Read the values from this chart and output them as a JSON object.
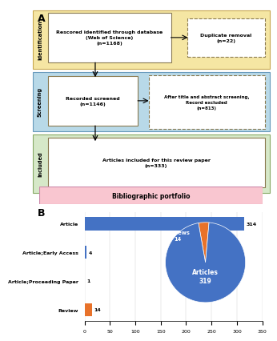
{
  "panel_a_label": "A",
  "panel_b_label": "B",
  "identification_label": "Identification",
  "screening_label": "Screening",
  "included_label": "Included",
  "box1_text": "Rescored identified through database\n(Web of Science)\n(n=1168)",
  "box2_text": "Duplicate removal\n(n=22)",
  "box3_text": "Recorded screened\n(n=1146)",
  "box4_text": "After title and abstract screening,\nRecord excluded\n(n=813)",
  "box5_text": "Articles included for this review paper\n(n=333)",
  "box6_text": "Bibliographic portfolio",
  "id_bg": "#f5e6a3",
  "id_edge": "#c8a850",
  "screen_bg": "#b8d9e8",
  "screen_edge": "#6699bb",
  "included_bg": "#d6e8c8",
  "included_edge": "#88aa66",
  "biblio_bg": "#f9c6d0",
  "biblio_edge": "#cc88aa",
  "box_solid_color": "#8a7a50",
  "box_dashed_color": "#8a7a50",
  "bar_categories": [
    "Review",
    "Article;Proceeding Paper",
    "Article;Early Access",
    "Article"
  ],
  "bar_values": [
    14,
    1,
    4,
    314
  ],
  "bar_colors": [
    "#e8722a",
    "#4472c4",
    "#4472c4",
    "#4472c4"
  ],
  "bar_xlim": [
    0,
    350
  ],
  "bar_xticks": [
    0,
    50,
    100,
    150,
    200,
    250,
    300,
    350
  ],
  "pie_values": [
    14,
    319
  ],
  "pie_colors": [
    "#e8722a",
    "#4472c4"
  ],
  "pie_label0": "Reviews\n14",
  "pie_label1": "Articles\n319"
}
